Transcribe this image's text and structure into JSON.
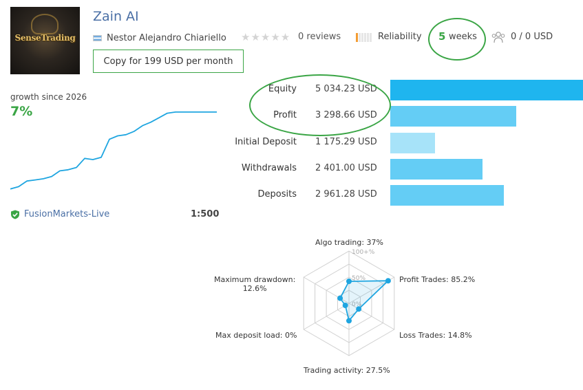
{
  "signal": {
    "title": "Zain AI",
    "logo_text": "SenseTrading",
    "author": "Nestor Alejandro Chiariello",
    "rating_stars": 0,
    "reviews_label": "0 reviews",
    "reliability_label": "Reliability",
    "reliability_level": 1,
    "weeks_value": "5",
    "weeks_label": "weeks",
    "subscribers_label": "0 / 0 USD",
    "copy_button_label": "Copy for 199 USD per month"
  },
  "growth": {
    "label": "growth since 2026",
    "value": "7%"
  },
  "account": {
    "broker": "FusionMarkets-Live",
    "leverage": "1:500"
  },
  "stats": [
    {
      "label": "Equity",
      "value": "5 034.23 USD",
      "amount": 5034.23,
      "color": "#1fb5ef"
    },
    {
      "label": "Profit",
      "value": "3 298.66 USD",
      "amount": 3298.66,
      "color": "#64cdf5"
    },
    {
      "label": "Initial Deposit",
      "value": "1 175.29 USD",
      "amount": 1175.29,
      "color": "#a7e3f9"
    },
    {
      "label": "Withdrawals",
      "value": "2 401.00 USD",
      "amount": 2401.0,
      "color": "#64cdf5"
    },
    {
      "label": "Deposits",
      "value": "2 961.28 USD",
      "amount": 2961.28,
      "color": "#64cdf5"
    }
  ],
  "chart_data": [
    {
      "type": "line",
      "title": "",
      "xlabel": "",
      "ylabel": "",
      "x": [
        0,
        1,
        2,
        3,
        4,
        5,
        6,
        7,
        8,
        9,
        10,
        11,
        12,
        13,
        14,
        15,
        16,
        17,
        18,
        19,
        20,
        21,
        22,
        23,
        24,
        25
      ],
      "values": [
        0.2,
        0.4,
        0.9,
        1.0,
        1.1,
        1.3,
        1.8,
        1.9,
        2.1,
        2.9,
        2.8,
        3.0,
        4.6,
        4.9,
        5.0,
        5.3,
        5.8,
        6.1,
        6.5,
        6.9,
        7.0,
        7.0,
        7.0,
        7.0,
        7.0,
        7.0
      ],
      "ylim": [
        0,
        7.3
      ]
    },
    {
      "type": "radar",
      "title": "",
      "axes": [
        {
          "label": "Algo trading: 37%",
          "value": 37
        },
        {
          "label": "Profit Trades: 85.2%",
          "value": 85.2
        },
        {
          "label": "Loss Trades: 14.8%",
          "value": 14.8
        },
        {
          "label": "Trading activity: 27.5%",
          "value": 27.5
        },
        {
          "label": "Max deposit load: 0%",
          "value": 0
        },
        {
          "label": "Maximum drawdown:",
          "label2": "12.6%",
          "value": 12.6
        }
      ],
      "rings": [
        "100+%",
        "50%",
        "0%"
      ],
      "range": [
        0,
        100
      ]
    }
  ],
  "colors": {
    "accent_green": "#3aa545",
    "link_blue": "#4a6fa5",
    "series_blue": "#1ea5e0"
  }
}
